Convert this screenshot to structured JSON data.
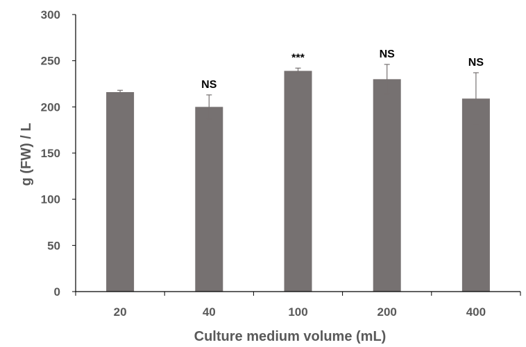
{
  "chart_data": {
    "type": "bar",
    "title": "",
    "xlabel": "Culture medium volume (mL)",
    "ylabel": "g (FW) / L",
    "categories": [
      "20",
      "40",
      "100",
      "200",
      "400"
    ],
    "values": [
      216,
      200,
      239,
      230,
      209
    ],
    "error": [
      2,
      13,
      3,
      16,
      28
    ],
    "annotations": [
      "",
      "NS",
      "***",
      "NS",
      "NS"
    ],
    "ylim": [
      0,
      300
    ],
    "yticks": [
      0,
      50,
      100,
      150,
      200,
      250,
      300
    ],
    "ytick_labels": [
      "0",
      "50",
      "100",
      "150",
      "200",
      "250",
      "300"
    ],
    "grid": false,
    "legend": "none",
    "colors": {
      "bar": "#767171",
      "axis": "#000000",
      "error_bar": "#767171",
      "tick_text": "#595959",
      "annotation_text": "#000000"
    }
  }
}
